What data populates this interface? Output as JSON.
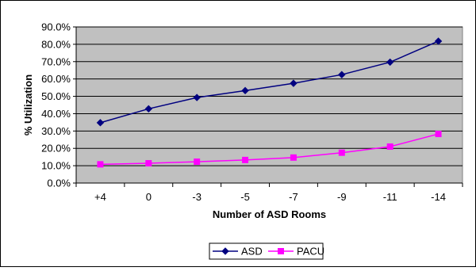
{
  "chart_data": {
    "type": "line",
    "title": "",
    "xlabel": "Number of ASD Rooms",
    "ylabel": "% Utilization",
    "categories": [
      "+4",
      "0",
      "-3",
      "-5",
      "-7",
      "-9",
      "-11",
      "-14"
    ],
    "ylim": [
      0,
      90
    ],
    "yticks": [
      "0.0%",
      "10.0%",
      "20.0%",
      "30.0%",
      "40.0%",
      "50.0%",
      "60.0%",
      "70.0%",
      "80.0%",
      "90.0%"
    ],
    "grid": true,
    "legend_position": "bottom",
    "series": [
      {
        "name": "ASD",
        "color": "#000080",
        "marker": "diamond",
        "values": [
          34.8,
          42.8,
          49.3,
          53.3,
          57.5,
          62.5,
          69.7,
          81.8
        ]
      },
      {
        "name": "PACU",
        "color": "#FF00FF",
        "marker": "square",
        "values": [
          10.8,
          11.4,
          12.3,
          13.3,
          14.7,
          17.5,
          21.0,
          28.3
        ]
      }
    ],
    "plot_background": "#C0C0C0"
  }
}
